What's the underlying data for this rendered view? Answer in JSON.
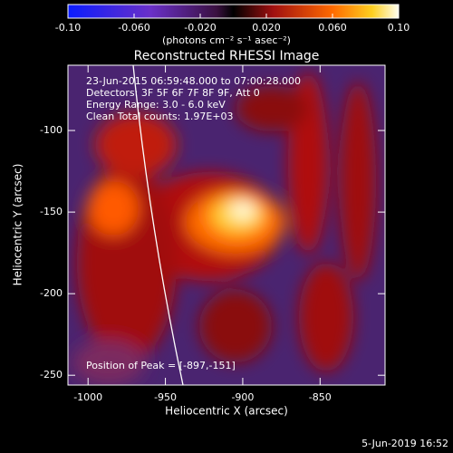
{
  "chart_data": {
    "type": "image",
    "title": "Reconstructed RHESSI Image",
    "xlabel": "Heliocentric X (arcsec)",
    "ylabel": "Heliocentric Y (arcsec)",
    "xlim": [
      -1013,
      -808
    ],
    "ylim": [
      -256,
      -60
    ],
    "xticks": [
      -1000,
      -950,
      -900,
      -850
    ],
    "yticks": [
      -250,
      -200,
      -150,
      -100
    ],
    "colorbar": {
      "label": "(photons cm⁻² s⁻¹ asec⁻²)",
      "lim": [
        -0.1,
        0.1
      ],
      "ticks": [
        {
          "value": -0.1,
          "label": "-0.10"
        },
        {
          "value": -0.06,
          "label": "-0.060"
        },
        {
          "value": -0.02,
          "label": "-0.020"
        },
        {
          "value": 0.02,
          "label": "0.020"
        },
        {
          "value": 0.06,
          "label": "0.060"
        },
        {
          "value": 0.1,
          "label": "0.10"
        }
      ]
    },
    "annotations": [
      "23-Jun-2015 06:59:48.000 to 07:00:28.000",
      "Detectors: 3F 5F 6F 7F 8F 9F, Att 0",
      "Energy Range: 3.0 - 6.0 keV",
      "Clean    Total counts: 1.97E+03"
    ],
    "peak_label": "Position of Peak = [-897,-151]",
    "footer": "5-Jun-2019 16:52"
  }
}
